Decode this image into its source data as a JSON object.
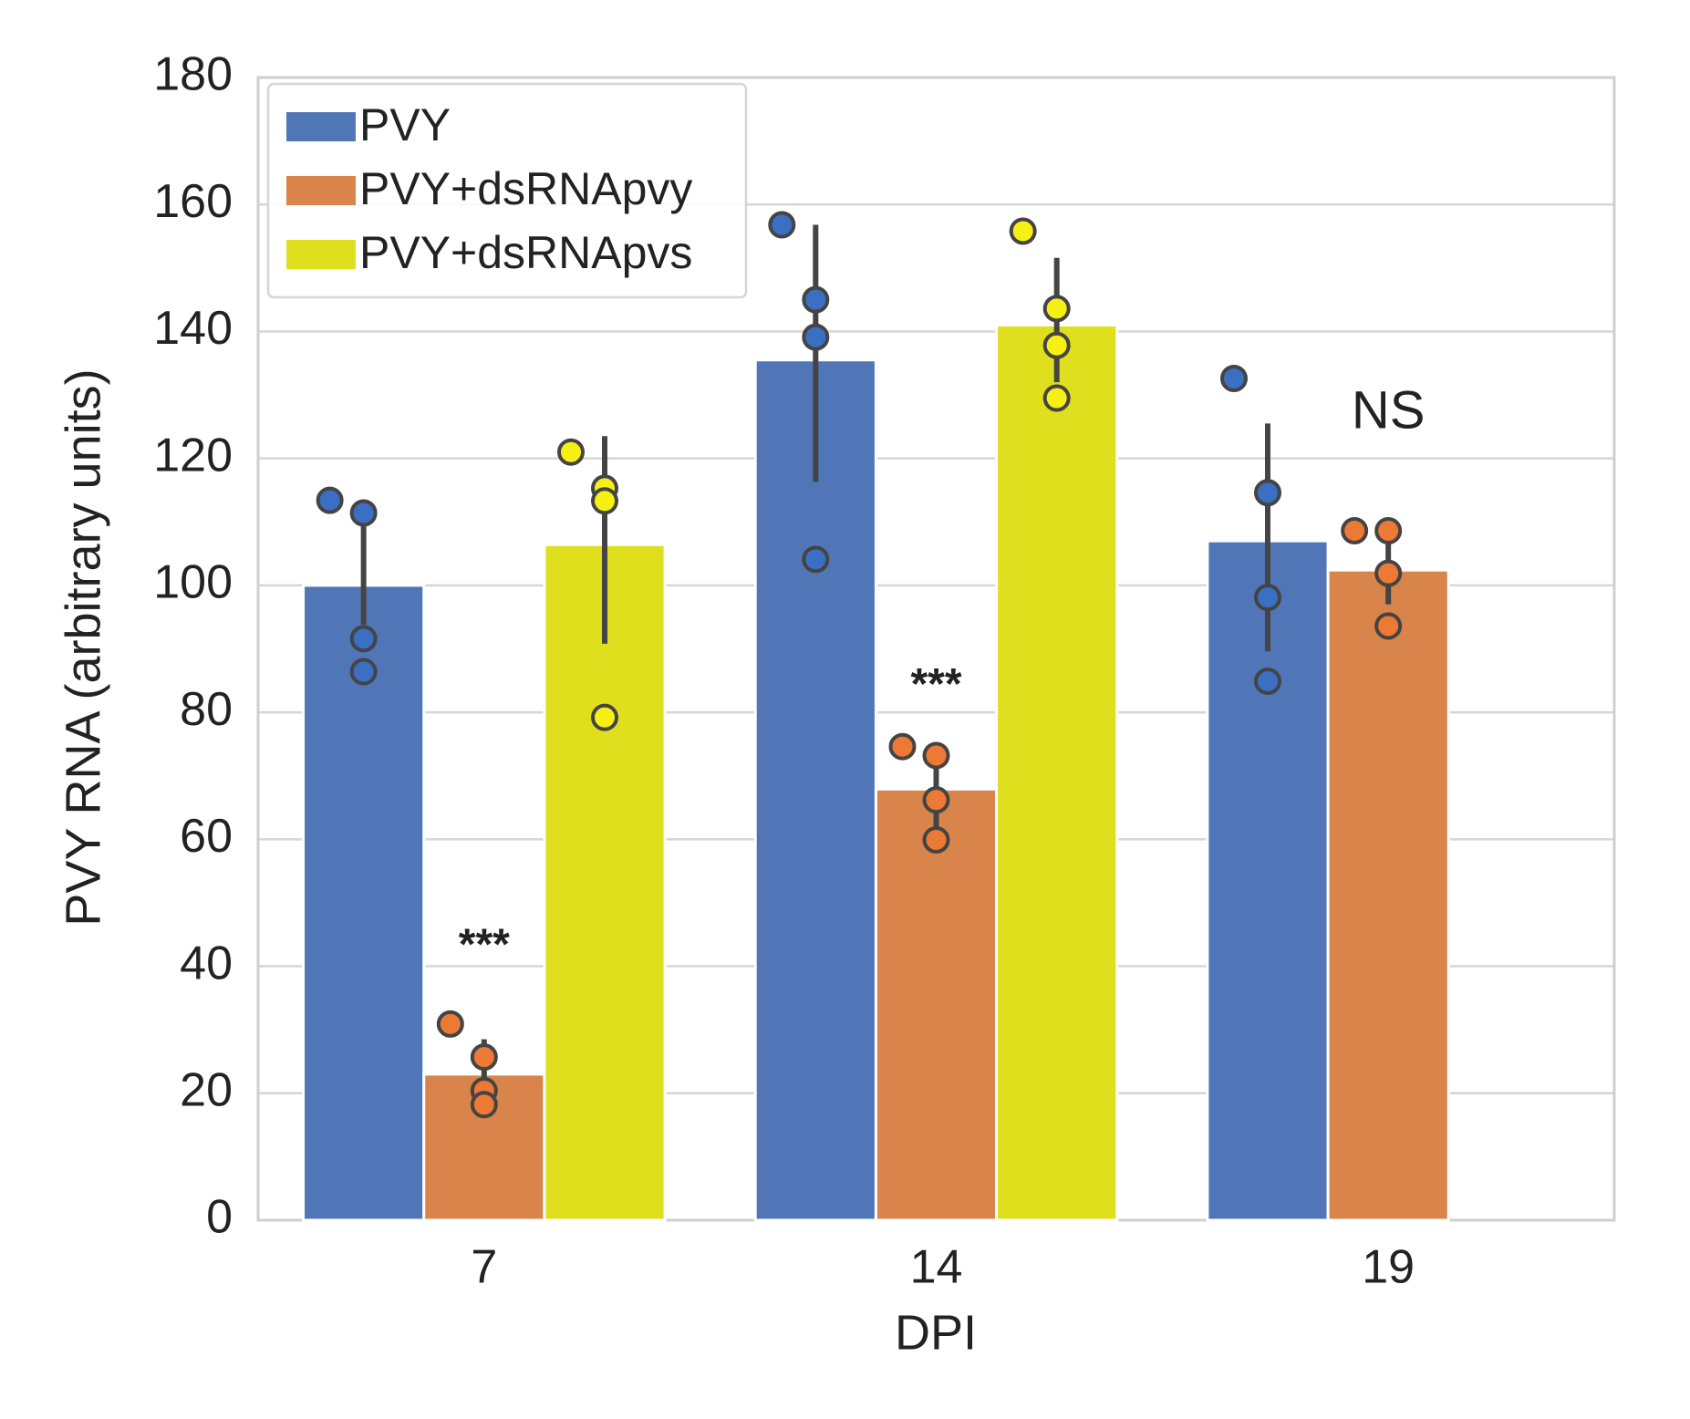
{
  "chart_data": {
    "type": "bar",
    "ylabel": "PVY RNA (arbitrary units)",
    "xlabel": "DPI",
    "categories": [
      "7",
      "14",
      "19"
    ],
    "ylim": [
      0,
      180
    ],
    "yticks": [
      0,
      20,
      40,
      60,
      80,
      100,
      120,
      140,
      160,
      180
    ],
    "grid": true,
    "legend": "upper left",
    "series": [
      {
        "name": "PVY",
        "color": "#5176b8",
        "point_color": "#3a6fc4",
        "values": [
          100,
          135.5,
          107
        ],
        "ci": [
          [
            93.8,
            110.4
          ],
          [
            116.3,
            156.8
          ],
          [
            89.6,
            125.5
          ]
        ],
        "points": [
          [
            113.4,
            111.4,
            91.6,
            86.4
          ],
          [
            156.8,
            145,
            139.1,
            104.1
          ],
          [
            132.6,
            114.6,
            98.1,
            84.9
          ]
        ]
      },
      {
        "name": "PVY+dsRNApvy",
        "color": "#d9844a",
        "point_color": "#ec7a35",
        "values": [
          23,
          67.9,
          102.4
        ],
        "ci": [
          [
            19.5,
            28.5
          ],
          [
            62,
            73
          ],
          [
            97,
            107
          ]
        ],
        "points": [
          [
            30.9,
            25.7,
            20.4,
            18.2
          ],
          [
            74.6,
            73.2,
            66.2,
            59.9
          ],
          [
            108.6,
            108.6,
            101.9,
            93.6
          ]
        ]
      },
      {
        "name": "PVY+dsRNApvs",
        "color": "#dfdf1e",
        "point_color": "#f7f014",
        "values": [
          106.4,
          141,
          null
        ],
        "ci": [
          [
            90.8,
            123.5
          ],
          [
            132,
            151.6
          ],
          null
        ],
        "points": [
          [
            121,
            115.3,
            113.3,
            79.2
          ],
          [
            155.8,
            143.6,
            137.8,
            129.5
          ],
          null
        ]
      }
    ],
    "annotations": [
      "***",
      "***",
      "NS"
    ]
  }
}
